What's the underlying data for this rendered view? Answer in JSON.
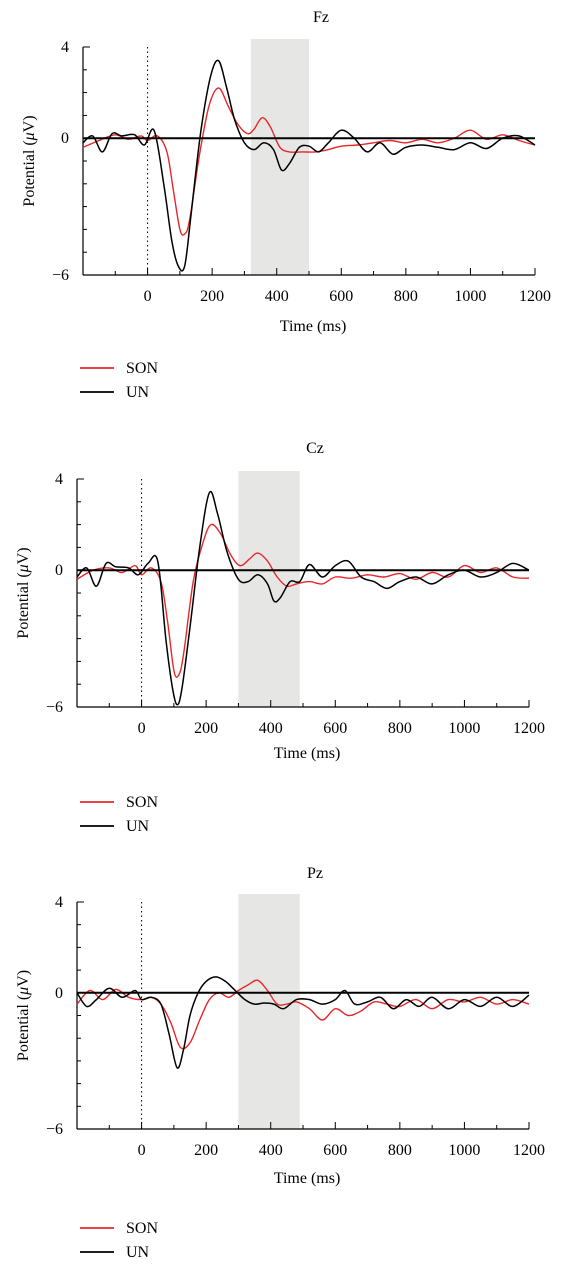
{
  "chart_data": [
    {
      "type": "line",
      "title": "Fz",
      "xlabel": "Time (ms)",
      "ylabel": "Potential (μV)",
      "ylabel_parts": [
        "Potential (",
        "μ",
        "V)"
      ],
      "xlim": [
        -200,
        1200
      ],
      "ylim": [
        -6,
        4
      ],
      "x_ticks": [
        0,
        200,
        400,
        600,
        800,
        1000,
        1200
      ],
      "y_ticks": [
        4,
        0,
        -6
      ],
      "y_tick_labels": [
        "4",
        "0",
        "−6"
      ],
      "stimulus_onset": 0,
      "shaded_window": [
        320,
        500
      ],
      "legend_position": "bottom-left",
      "series": [
        {
          "name": "SON",
          "color": "#e8272a",
          "x": [
            -200,
            -150,
            -100,
            -60,
            -20,
            0,
            30,
            60,
            80,
            100,
            115,
            130,
            160,
            190,
            220,
            250,
            280,
            310,
            330,
            355,
            380,
            410,
            440,
            480,
            520,
            560,
            600,
            650,
            700,
            750,
            800,
            850,
            900,
            950,
            1000,
            1050,
            1100,
            1150,
            1200
          ],
          "y": [
            -0.4,
            -0.1,
            0.15,
            -0.05,
            0.1,
            -0.1,
            0.1,
            -0.6,
            -2.3,
            -4.0,
            -4.2,
            -3.6,
            -0.8,
            1.4,
            2.2,
            1.4,
            0.6,
            0.2,
            0.4,
            0.9,
            0.5,
            -0.4,
            -0.6,
            -0.6,
            -0.6,
            -0.5,
            -0.35,
            -0.3,
            -0.2,
            -0.1,
            -0.2,
            -0.05,
            -0.2,
            0.0,
            0.35,
            -0.05,
            0.15,
            -0.1,
            -0.3
          ]
        },
        {
          "name": "UN",
          "color": "#000000",
          "x": [
            -200,
            -170,
            -140,
            -110,
            -80,
            -40,
            -10,
            20,
            50,
            75,
            95,
            115,
            135,
            165,
            195,
            220,
            245,
            270,
            300,
            330,
            360,
            390,
            415,
            440,
            470,
            500,
            530,
            560,
            600,
            640,
            680,
            720,
            760,
            800,
            850,
            900,
            950,
            1000,
            1050,
            1100,
            1150,
            1200
          ],
          "y": [
            -0.2,
            0.1,
            -0.6,
            0.2,
            0.1,
            0.15,
            -0.3,
            0.35,
            -2.0,
            -4.5,
            -5.6,
            -5.6,
            -3.3,
            0.3,
            2.7,
            3.4,
            2.2,
            0.8,
            -0.2,
            -0.5,
            -0.2,
            -0.5,
            -1.4,
            -1.1,
            -0.4,
            -0.35,
            -0.6,
            -0.2,
            0.35,
            0.0,
            -0.6,
            -0.2,
            -0.7,
            -0.4,
            -0.3,
            -0.4,
            -0.5,
            -0.2,
            -0.45,
            0.0,
            0.1,
            -0.3
          ]
        }
      ]
    },
    {
      "type": "line",
      "title": "Cz",
      "xlabel": "Time (ms)",
      "ylabel": "Potential (μV)",
      "ylabel_parts": [
        "Potential (",
        "μ",
        "V)"
      ],
      "xlim": [
        -200,
        1200
      ],
      "ylim": [
        -6,
        4
      ],
      "x_ticks": [
        0,
        200,
        400,
        600,
        800,
        1000,
        1200
      ],
      "y_ticks": [
        4,
        0,
        -6
      ],
      "y_tick_labels": [
        "4",
        "0",
        "−6"
      ],
      "stimulus_onset": 0,
      "shaded_window": [
        300,
        490
      ],
      "legend_position": "bottom-left",
      "series": [
        {
          "name": "SON",
          "color": "#e8272a",
          "x": [
            -200,
            -150,
            -100,
            -60,
            -20,
            0,
            30,
            60,
            80,
            100,
            115,
            130,
            160,
            190,
            215,
            245,
            275,
            305,
            335,
            360,
            390,
            420,
            450,
            480,
            520,
            560,
            600,
            650,
            700,
            750,
            800,
            850,
            900,
            950,
            1000,
            1050,
            1100,
            1150,
            1200
          ],
          "y": [
            -0.4,
            0.0,
            0.1,
            -0.1,
            0.2,
            -0.2,
            0.1,
            -0.5,
            -2.2,
            -4.4,
            -4.6,
            -3.7,
            -0.5,
            1.2,
            2.0,
            1.6,
            0.7,
            0.2,
            0.5,
            0.75,
            0.4,
            -0.3,
            -0.7,
            -0.6,
            -0.5,
            -0.6,
            -0.3,
            -0.35,
            -0.2,
            -0.3,
            -0.15,
            -0.4,
            -0.1,
            -0.3,
            0.2,
            -0.1,
            0.1,
            -0.3,
            -0.35
          ]
        },
        {
          "name": "UN",
          "color": "#000000",
          "x": [
            -200,
            -170,
            -140,
            -110,
            -80,
            -40,
            -10,
            20,
            50,
            75,
            95,
            110,
            125,
            150,
            180,
            210,
            235,
            265,
            300,
            330,
            360,
            390,
            410,
            430,
            460,
            490,
            520,
            560,
            600,
            640,
            680,
            720,
            760,
            800,
            850,
            900,
            950,
            1000,
            1050,
            1100,
            1150,
            1200
          ],
          "y": [
            -0.3,
            0.1,
            -0.7,
            0.3,
            0.15,
            0.1,
            -0.2,
            0.3,
            0.4,
            -3.0,
            -5.1,
            -5.9,
            -5.2,
            -2.5,
            1.0,
            3.4,
            2.5,
            0.8,
            -0.4,
            -0.5,
            -0.2,
            -0.6,
            -1.35,
            -1.2,
            -0.5,
            -0.5,
            0.25,
            -0.3,
            0.2,
            0.4,
            -0.3,
            -0.5,
            -0.8,
            -0.5,
            -0.3,
            -0.6,
            -0.2,
            0.0,
            -0.3,
            -0.1,
            0.3,
            0.0
          ]
        }
      ]
    },
    {
      "type": "line",
      "title": "Pz",
      "xlabel": "Time (ms)",
      "ylabel": "Potential (μV)",
      "ylabel_parts": [
        "Potential (",
        "μ",
        "V)"
      ],
      "xlim": [
        -200,
        1200
      ],
      "ylim": [
        -6,
        4
      ],
      "x_ticks": [
        0,
        200,
        400,
        600,
        800,
        1000,
        1200
      ],
      "y_ticks": [
        4,
        0,
        -6
      ],
      "y_tick_labels": [
        "4",
        "0",
        "−6"
      ],
      "stimulus_onset": 0,
      "shaded_window": [
        300,
        490
      ],
      "legend_position": "bottom-left",
      "series": [
        {
          "name": "SON",
          "color": "#e8272a",
          "x": [
            -200,
            -160,
            -120,
            -80,
            -40,
            0,
            30,
            60,
            90,
            120,
            150,
            180,
            210,
            240,
            270,
            300,
            330,
            360,
            390,
            420,
            450,
            480,
            520,
            560,
            600,
            640,
            680,
            720,
            760,
            800,
            850,
            900,
            950,
            1000,
            1050,
            1100,
            1150,
            1200
          ],
          "y": [
            -0.5,
            0.1,
            -0.3,
            0.15,
            -0.2,
            -0.3,
            -0.2,
            -0.5,
            -1.3,
            -2.4,
            -2.2,
            -1.2,
            -0.3,
            0.0,
            -0.2,
            0.1,
            0.35,
            0.55,
            0.1,
            -0.5,
            -0.5,
            -0.4,
            -0.7,
            -1.2,
            -0.7,
            -1.0,
            -0.8,
            -0.4,
            -0.5,
            -0.6,
            -0.3,
            -0.7,
            -0.3,
            -0.4,
            -0.2,
            -0.5,
            -0.3,
            -0.5
          ]
        },
        {
          "name": "UN",
          "color": "#000000",
          "x": [
            -200,
            -170,
            -140,
            -100,
            -60,
            -20,
            0,
            30,
            60,
            85,
            110,
            130,
            150,
            175,
            200,
            230,
            260,
            290,
            320,
            350,
            380,
            410,
            440,
            480,
            520,
            560,
            600,
            630,
            660,
            700,
            740,
            780,
            820,
            860,
            900,
            950,
            1000,
            1050,
            1100,
            1150,
            1200
          ],
          "y": [
            0.0,
            -0.6,
            -0.3,
            0.2,
            -0.2,
            0.1,
            -0.3,
            -0.2,
            -0.5,
            -1.8,
            -3.3,
            -2.5,
            -1.0,
            0.0,
            0.5,
            0.7,
            0.5,
            0.1,
            -0.3,
            -0.5,
            -0.45,
            -0.5,
            -0.7,
            -0.3,
            -0.3,
            -0.5,
            -0.3,
            0.1,
            -0.5,
            -0.4,
            -0.2,
            -0.7,
            -0.3,
            -0.6,
            -0.2,
            -0.7,
            -0.3,
            -0.6,
            -0.2,
            -0.6,
            -0.1
          ]
        }
      ]
    }
  ]
}
